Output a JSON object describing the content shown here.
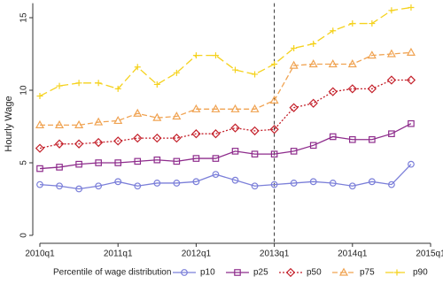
{
  "chart_data": {
    "type": "line",
    "y_label": "Hourly Wage",
    "legend_title": "Percentile of wage distribution",
    "legend": "bottom",
    "x": [
      2010,
      2010.25,
      2010.5,
      2010.75,
      2011,
      2011.25,
      2011.5,
      2011.75,
      2012,
      2012.25,
      2012.5,
      2012.75,
      2013,
      2013.25,
      2013.5,
      2013.75,
      2014,
      2014.25,
      2014.5,
      2014.75
    ],
    "xlim": [
      2010,
      2015
    ],
    "xticks": [
      {
        "value": 2010,
        "label": "2010q1"
      },
      {
        "value": 2011,
        "label": "2011q1"
      },
      {
        "value": 2012,
        "label": "2012q1"
      },
      {
        "value": 2013,
        "label": "2013q1"
      },
      {
        "value": 2014,
        "label": "2014q1"
      },
      {
        "value": 2015,
        "label": "2015q1"
      }
    ],
    "ylim": [
      0,
      16
    ],
    "yticks": [
      0,
      5,
      10,
      15
    ],
    "vline": 2013,
    "series": [
      {
        "name": "p10",
        "color": "#7b7fd9",
        "marker": "circle",
        "dash": "solid",
        "values": [
          3.5,
          3.4,
          3.2,
          3.4,
          3.7,
          3.4,
          3.6,
          3.6,
          3.7,
          4.2,
          3.8,
          3.4,
          3.5,
          3.6,
          3.7,
          3.6,
          3.4,
          3.7,
          3.5,
          4.9
        ]
      },
      {
        "name": "p25",
        "color": "#8e2c8c",
        "marker": "square",
        "dash": "solid",
        "values": [
          4.6,
          4.7,
          4.9,
          5.0,
          5.0,
          5.1,
          5.2,
          5.1,
          5.3,
          5.3,
          5.8,
          5.6,
          5.6,
          5.8,
          6.2,
          6.8,
          6.6,
          6.6,
          7.0,
          7.7
        ]
      },
      {
        "name": "p50",
        "color": "#c4212b",
        "marker": "diamond",
        "dash": "dot",
        "values": [
          6.0,
          6.3,
          6.3,
          6.4,
          6.5,
          6.7,
          6.7,
          6.7,
          7.0,
          7.0,
          7.4,
          7.2,
          7.3,
          8.8,
          9.1,
          9.9,
          10.1,
          10.1,
          10.7,
          10.7
        ]
      },
      {
        "name": "p75",
        "color": "#f0a352",
        "marker": "triangle",
        "dash": "dash",
        "values": [
          7.6,
          7.6,
          7.6,
          7.8,
          7.9,
          8.4,
          8.1,
          8.2,
          8.7,
          8.7,
          8.7,
          8.7,
          9.3,
          11.7,
          11.8,
          11.8,
          11.8,
          12.4,
          12.5,
          12.6
        ]
      },
      {
        "name": "p90",
        "color": "#f5d21e",
        "marker": "plus",
        "dash": "longdash",
        "values": [
          9.6,
          10.3,
          10.5,
          10.5,
          10.1,
          11.6,
          10.4,
          11.2,
          12.4,
          12.4,
          11.4,
          11.1,
          11.8,
          12.9,
          13.2,
          14.1,
          14.6,
          14.6,
          15.5,
          15.7
        ]
      }
    ]
  }
}
